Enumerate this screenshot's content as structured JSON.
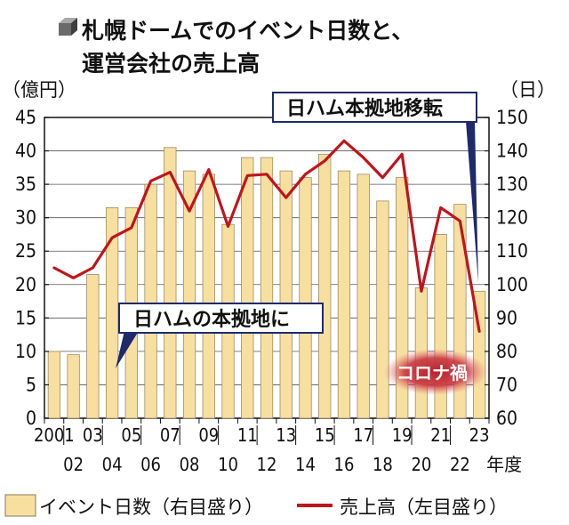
{
  "chart_data": {
    "type": "bar+line",
    "title_line1": "札幌ドームでのイベント日数と、",
    "title_line2": "運営会社の売上高",
    "left_unit": "（億円）",
    "right_unit": "（日）",
    "x_suffix": "年度",
    "years": [
      2001,
      2002,
      2003,
      2004,
      2005,
      2006,
      2007,
      2008,
      2009,
      2010,
      2011,
      2012,
      2013,
      2014,
      2015,
      2016,
      2017,
      2018,
      2019,
      2020,
      2021,
      2022,
      2023
    ],
    "x_labels_top": [
      "2001",
      "",
      "03",
      "",
      "05",
      "",
      "07",
      "",
      "09",
      "",
      "11",
      "",
      "13",
      "",
      "15",
      "",
      "17",
      "",
      "19",
      "",
      "21",
      "",
      "23"
    ],
    "x_labels_bottom": [
      "",
      "02",
      "",
      "04",
      "",
      "06",
      "",
      "08",
      "",
      "10",
      "",
      "12",
      "",
      "14",
      "",
      "16",
      "",
      "18",
      "",
      "20",
      "",
      "22",
      ""
    ],
    "left_axis": {
      "min": 0,
      "max": 45,
      "ticks": [
        "0",
        "5",
        "10",
        "15",
        "20",
        "25",
        "30",
        "35",
        "40",
        "45"
      ]
    },
    "right_axis": {
      "min": 60,
      "max": 150,
      "ticks": [
        "60",
        "70",
        "80",
        "90",
        "100",
        "110",
        "120",
        "130",
        "140",
        "150"
      ]
    },
    "series": [
      {
        "name": "イベント日数（右目盛り）",
        "type": "bar",
        "axis": "right",
        "color": "#f7dfa0",
        "values": [
          80,
          79,
          103,
          123,
          123,
          130,
          141,
          134,
          133,
          118,
          138,
          138,
          134,
          132,
          139,
          134,
          133,
          125,
          132,
          99,
          115,
          124,
          98
        ]
      },
      {
        "name": "売上高（左目盛り）",
        "type": "line",
        "axis": "left",
        "color": "#c0141b",
        "values": [
          22.5,
          21.0,
          22.5,
          27.0,
          28.5,
          35.5,
          36.8,
          31.0,
          37.2,
          28.7,
          36.3,
          36.5,
          33.0,
          36.5,
          38.5,
          41.5,
          39.0,
          36.0,
          39.5,
          19.0,
          31.5,
          29.5,
          13.0
        ]
      }
    ],
    "annotations": {
      "move_label": "日ハムの本拠地に",
      "leave_label": "日ハム本拠地移転",
      "covid_label": "コロナ禍"
    }
  }
}
